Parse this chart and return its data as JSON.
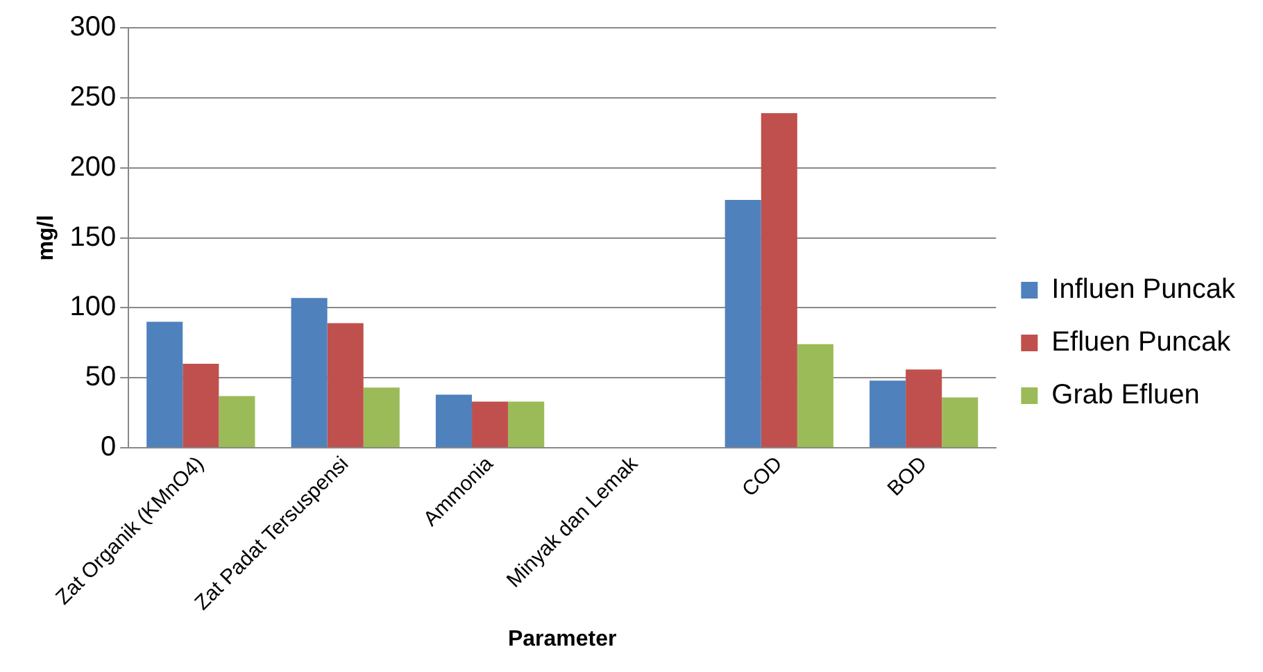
{
  "chart_data": {
    "type": "bar",
    "xlabel": "Parameter",
    "ylabel": "mg/l",
    "categories": [
      "Zat Organik (KMnO4)",
      "Zat Padat Tersuspensi",
      "Ammonia",
      "Minyak dan Lemak",
      "COD",
      "BOD"
    ],
    "series": [
      {
        "name": "Influen Puncak",
        "color": "#4f81bd",
        "values": [
          90,
          107,
          38,
          0,
          177,
          48
        ]
      },
      {
        "name": "Efluen Puncak",
        "color": "#c0504d",
        "values": [
          60,
          89,
          33,
          0,
          239,
          56
        ]
      },
      {
        "name": "Grab Efluen",
        "color": "#9bbb59",
        "values": [
          37,
          43,
          33,
          0,
          74,
          36
        ]
      }
    ],
    "ylim": [
      0,
      300
    ],
    "yticks": [
      0,
      50,
      100,
      150,
      200,
      250,
      300
    ],
    "grid": "y",
    "legend": "right"
  }
}
